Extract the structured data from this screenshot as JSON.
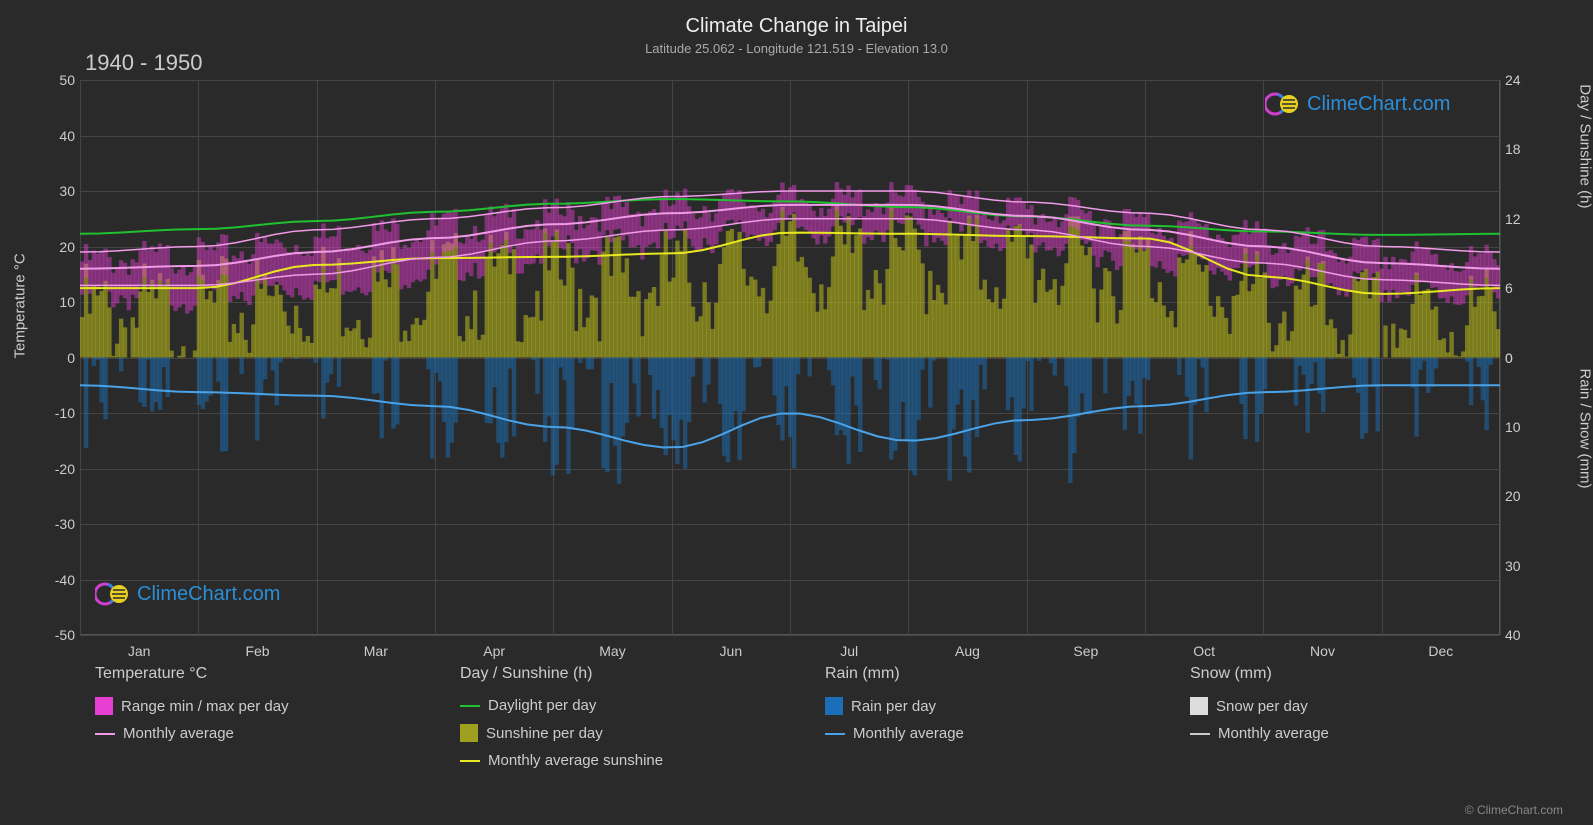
{
  "title": "Climate Change in Taipei",
  "subtitle": "Latitude 25.062 - Longitude 121.519 - Elevation 13.0",
  "period": "1940 - 1950",
  "axes": {
    "left_label": "Temperature °C",
    "right_top_label": "Day / Sunshine (h)",
    "right_bottom_label": "Rain / Snow (mm)",
    "left_ticks": [
      50,
      40,
      30,
      20,
      10,
      0,
      -10,
      -20,
      -30,
      -40,
      -50
    ],
    "right_top_ticks": [
      24,
      18,
      12,
      6,
      0
    ],
    "right_bottom_ticks": [
      0,
      10,
      20,
      30,
      40
    ],
    "x_ticks": [
      "Jan",
      "Feb",
      "Mar",
      "Apr",
      "May",
      "Jun",
      "Jul",
      "Aug",
      "Sep",
      "Oct",
      "Nov",
      "Dec"
    ],
    "left_range": [
      -50,
      50
    ],
    "right_top_range": [
      0,
      24
    ],
    "right_bottom_range": [
      0,
      40
    ]
  },
  "chart": {
    "bg": "#2a2a2a",
    "grid_color": "#444444",
    "temp_range_color": "#e63fd2",
    "temp_avg_color": "#f19ae8",
    "daylight_color": "#20c030",
    "sunshine_bar_color": "#bcbc1a",
    "sunshine_avg_color": "#e8e820",
    "rain_bar_color": "#1a6fb8",
    "rain_avg_color": "#4aa3e8",
    "snow_bar_color": "#dddddd",
    "snow_avg_color": "#cccccc",
    "watermark_text": "ClimeChart.com",
    "watermark_color": "#2a8fd8"
  },
  "data": {
    "daylight_h": [
      10.7,
      11.1,
      11.8,
      12.6,
      13.3,
      13.7,
      13.5,
      13.0,
      12.2,
      11.4,
      10.9,
      10.6
    ],
    "sunshine_avg_h": [
      6.0,
      6.0,
      8.0,
      8.6,
      8.7,
      9.0,
      10.8,
      10.7,
      10.5,
      10.3,
      7.0,
      5.5
    ],
    "temp_max": [
      19,
      20,
      23,
      25,
      27,
      29,
      30,
      30,
      28,
      26,
      23,
      20
    ],
    "temp_min": [
      13,
      13,
      15,
      18,
      21,
      23,
      25,
      25,
      23,
      20,
      17,
      14
    ],
    "temp_avg": [
      16,
      16.5,
      19,
      21.5,
      24,
      26,
      27.5,
      27.5,
      25.5,
      23,
      20,
      17
    ],
    "rain_avg_mm": [
      4,
      5,
      5.5,
      7,
      10,
      13,
      8,
      12,
      9,
      7,
      5,
      4
    ]
  },
  "legend": {
    "groups": [
      {
        "header": "Temperature °C",
        "items": [
          {
            "type": "swatch",
            "color": "#e63fd2",
            "label": "Range min / max per day"
          },
          {
            "type": "line",
            "color": "#f19ae8",
            "label": "Monthly average"
          }
        ]
      },
      {
        "header": "Day / Sunshine (h)",
        "items": [
          {
            "type": "line",
            "color": "#20c030",
            "label": "Daylight per day"
          },
          {
            "type": "swatch",
            "color": "#a0a020",
            "label": "Sunshine per day"
          },
          {
            "type": "line",
            "color": "#e8e820",
            "label": "Monthly average sunshine"
          }
        ]
      },
      {
        "header": "Rain (mm)",
        "items": [
          {
            "type": "swatch",
            "color": "#1a6fb8",
            "label": "Rain per day"
          },
          {
            "type": "line",
            "color": "#4aa3e8",
            "label": "Monthly average"
          }
        ]
      },
      {
        "header": "Snow (mm)",
        "items": [
          {
            "type": "swatch",
            "color": "#dddddd",
            "label": "Snow per day"
          },
          {
            "type": "line",
            "color": "#cccccc",
            "label": "Monthly average"
          }
        ]
      }
    ]
  },
  "copyright": "© ClimeChart.com"
}
